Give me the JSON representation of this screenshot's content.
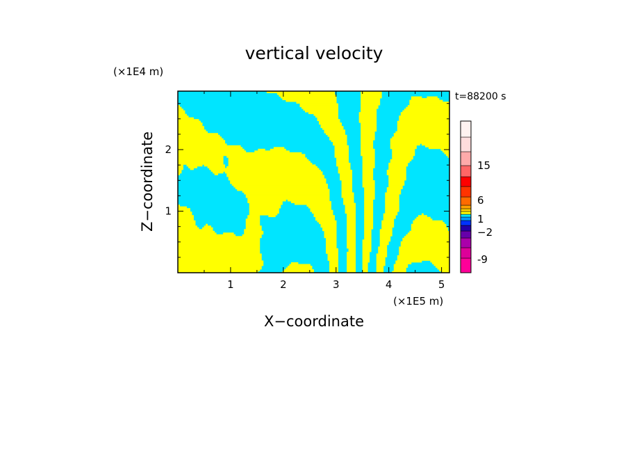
{
  "chart_data": {
    "type": "heatmap",
    "title": "vertical velocity",
    "time_label": "t=88200 s",
    "xlabel": "X−coordinate",
    "ylabel": "Z−coordinate",
    "x_unit": "(×1E5 m)",
    "y_unit": "(×1E4 m)",
    "xlim": [
      0,
      5.15
    ],
    "ylim": [
      0,
      2.95
    ],
    "x_ticks": [
      1,
      2,
      3,
      4,
      5
    ],
    "y_ticks": [
      1,
      2
    ],
    "x_tick_labels": [
      "1",
      "2",
      "3",
      "4",
      "5"
    ],
    "y_tick_labels": [
      "1",
      "2"
    ],
    "field_colors": {
      "positive": "#ffff00",
      "negative": "#00e5ff"
    },
    "colorbar": {
      "levels": [
        {
          "color": "#ff0099"
        },
        {
          "color": "#dd0099"
        },
        {
          "color": "#aa00aa"
        },
        {
          "color": "#6600aa"
        },
        {
          "color": "#2200aa"
        },
        {
          "color": "#0033ff"
        },
        {
          "color": "#0099ff"
        },
        {
          "color": "#00e5ff"
        },
        {
          "color": "#ffff00"
        },
        {
          "color": "#ffd000"
        },
        {
          "color": "#ffa000"
        },
        {
          "color": "#ff6a00"
        },
        {
          "color": "#ff3300"
        },
        {
          "color": "#ff0000"
        },
        {
          "color": "#ff6666"
        },
        {
          "color": "#ffaaaa"
        },
        {
          "color": "#ffdddd"
        },
        {
          "color": "#fff2f0"
        }
      ],
      "labels": [
        "-9",
        "−2",
        "1",
        "6",
        "15"
      ]
    }
  }
}
